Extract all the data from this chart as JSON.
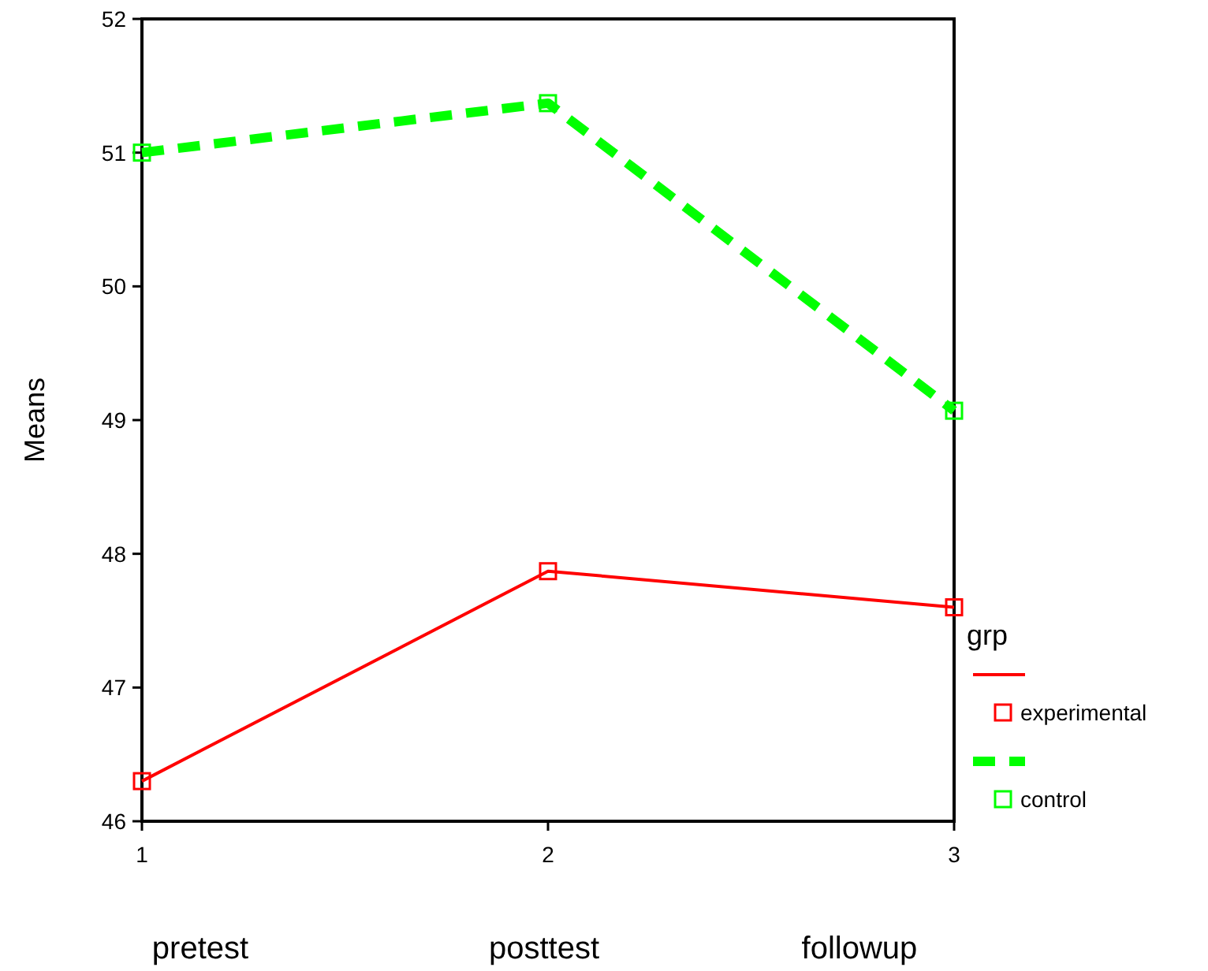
{
  "chart_data": {
    "type": "line",
    "ylabel": "Means",
    "legend_title": "grp",
    "legend": "right",
    "marker": "square",
    "x": [
      1,
      2,
      3
    ],
    "xlim": [
      1,
      3
    ],
    "xticks": [
      1,
      2,
      3
    ],
    "ylim": [
      46,
      52
    ],
    "yticks": [
      46,
      47,
      48,
      49,
      50,
      51,
      52
    ],
    "series": [
      {
        "name": "experimental",
        "color": "#ff0000",
        "values": [
          46.3,
          47.87,
          47.6
        ],
        "line_style": "solid"
      },
      {
        "name": "control",
        "color": "#00ff00",
        "values": [
          51.0,
          51.37,
          49.07
        ],
        "line_style": "dashed"
      }
    ],
    "annotations": [
      "pretest",
      "posttest",
      "followup"
    ]
  }
}
